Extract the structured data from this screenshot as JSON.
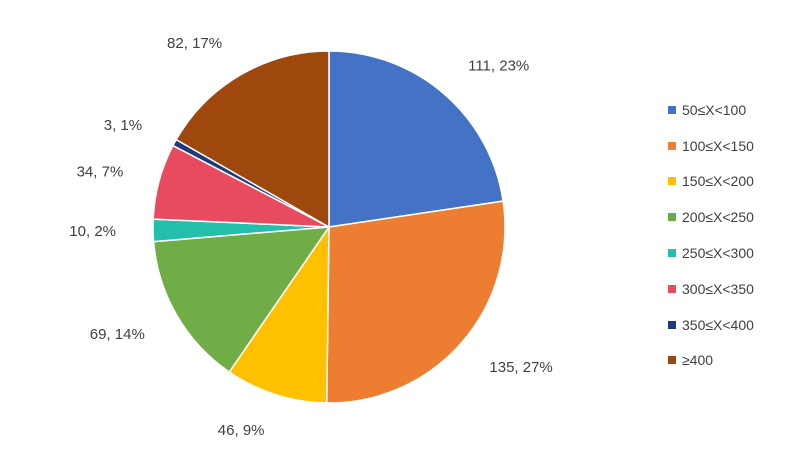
{
  "chart_data": {
    "type": "pie",
    "title": "",
    "start_angle_deg": 0,
    "direction": "clockwise",
    "legend_position": "right",
    "slices": [
      {
        "label": "50≤X<100",
        "value": 111,
        "percent_label": "23%",
        "data_label": "111, 23%",
        "color": "#4472C4"
      },
      {
        "label": "100≤X<150",
        "value": 135,
        "percent_label": "27%",
        "data_label": "135, 27%",
        "color": "#ED7D31"
      },
      {
        "label": "150≤X<200",
        "value": 46,
        "percent_label": "9%",
        "data_label": "46, 9%",
        "color": "#FFC000"
      },
      {
        "label": "200≤X<250",
        "value": 69,
        "percent_label": "14%",
        "data_label": "69, 14%",
        "color": "#70AD47"
      },
      {
        "label": "250≤X<300",
        "value": 10,
        "percent_label": "2%",
        "data_label": "10, 2%",
        "color": "#24BFAA"
      },
      {
        "label": "300≤X<350",
        "value": 34,
        "percent_label": "7%",
        "data_label": "34, 7%",
        "color": "#E84A5F"
      },
      {
        "label": "350≤X<400",
        "value": 3,
        "percent_label": "1%",
        "data_label": "3, 1%",
        "color": "#1F3A7A"
      },
      {
        "label": "≥400",
        "value": 82,
        "percent_label": "17%",
        "data_label": "82, 17%",
        "color": "#9E480E"
      }
    ]
  }
}
